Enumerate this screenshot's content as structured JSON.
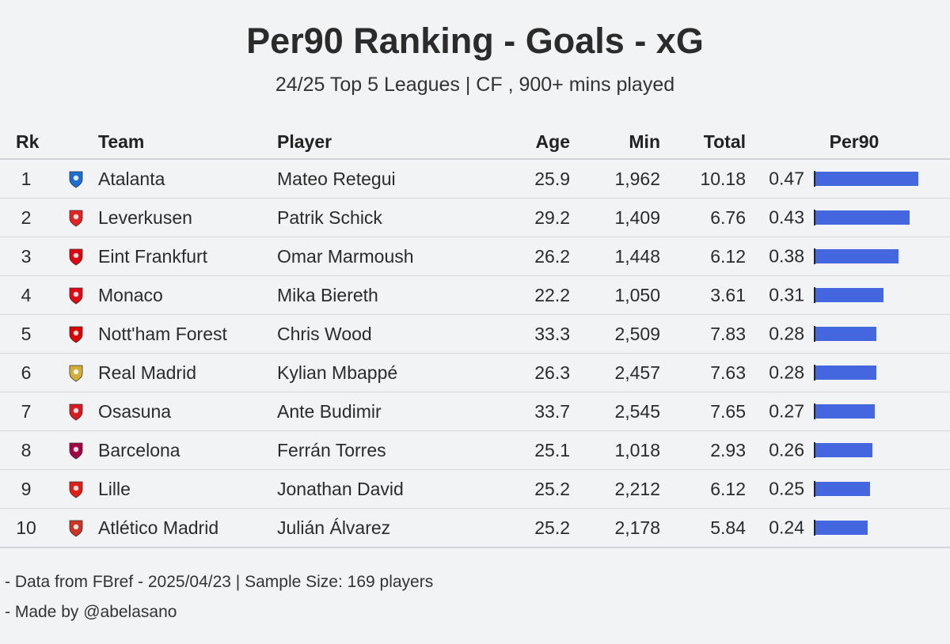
{
  "title": "Per90 Ranking - Goals - xG",
  "subtitle": "24/25 Top 5 Leagues | CF , 900+ mins played",
  "columns": {
    "rk": "Rk",
    "team": "Team",
    "player": "Player",
    "age": "Age",
    "min": "Min",
    "total": "Total",
    "per90": "Per90"
  },
  "rows": [
    {
      "rk": "1",
      "team": "Atalanta",
      "player": "Mateo Retegui",
      "age": "25.9",
      "min": "1,962",
      "total": "10.18",
      "per90": "0.47",
      "crest": "atalanta-crest",
      "color": "#1c6fd1"
    },
    {
      "rk": "2",
      "team": "Leverkusen",
      "player": "Patrik Schick",
      "age": "29.2",
      "min": "1,409",
      "total": "6.76",
      "per90": "0.43",
      "crest": "leverkusen-crest",
      "color": "#e32221"
    },
    {
      "rk": "3",
      "team": "Eint Frankfurt",
      "player": "Omar Marmoush",
      "age": "26.2",
      "min": "1,448",
      "total": "6.12",
      "per90": "0.38",
      "crest": "frankfurt-crest",
      "color": "#e1000f"
    },
    {
      "rk": "4",
      "team": "Monaco",
      "player": "Mika Biereth",
      "age": "22.2",
      "min": "1,050",
      "total": "3.61",
      "per90": "0.31",
      "crest": "monaco-crest",
      "color": "#e30613"
    },
    {
      "rk": "5",
      "team": "Nott'ham Forest",
      "player": "Chris Wood",
      "age": "33.3",
      "min": "2,509",
      "total": "7.83",
      "per90": "0.28",
      "crest": "forest-crest",
      "color": "#dd0000"
    },
    {
      "rk": "6",
      "team": "Real Madrid",
      "player": "Kylian Mbappé",
      "age": "26.3",
      "min": "2,457",
      "total": "7.63",
      "per90": "0.28",
      "crest": "real-madrid-crest",
      "color": "#d4af37"
    },
    {
      "rk": "7",
      "team": "Osasuna",
      "player": "Ante Budimir",
      "age": "33.7",
      "min": "2,545",
      "total": "7.65",
      "per90": "0.27",
      "crest": "osasuna-crest",
      "color": "#d91a21"
    },
    {
      "rk": "8",
      "team": "Barcelona",
      "player": "Ferrán Torres",
      "age": "25.1",
      "min": "1,018",
      "total": "2.93",
      "per90": "0.26",
      "crest": "barcelona-crest",
      "color": "#a50044"
    },
    {
      "rk": "9",
      "team": "Lille",
      "player": "Jonathan David",
      "age": "25.2",
      "min": "2,212",
      "total": "6.12",
      "per90": "0.25",
      "crest": "lille-crest",
      "color": "#e01e13"
    },
    {
      "rk": "10",
      "team": "Atlético Madrid",
      "player": "Julián Álvarez",
      "age": "25.2",
      "min": "2,178",
      "total": "5.84",
      "per90": "0.24",
      "crest": "atletico-crest",
      "color": "#cb3524"
    }
  ],
  "footer": {
    "line1": "- Data from FBref - 2025/04/23 | Sample Size: 169 players",
    "line2": "- Made by @abelasano"
  },
  "bar_color": "#4467e0",
  "chart_data": {
    "type": "bar",
    "title": "Per90 Ranking - Goals - xG",
    "subtitle": "24/25 Top 5 Leagues | CF , 900+ mins played",
    "categories": [
      "Mateo Retegui",
      "Patrik Schick",
      "Omar Marmoush",
      "Mika Biereth",
      "Chris Wood",
      "Kylian Mbappé",
      "Ante Budimir",
      "Ferrán Torres",
      "Jonathan David",
      "Julián Álvarez"
    ],
    "series": [
      {
        "name": "Per90",
        "values": [
          0.47,
          0.43,
          0.38,
          0.31,
          0.28,
          0.28,
          0.27,
          0.26,
          0.25,
          0.24
        ]
      }
    ],
    "xlim": [
      0,
      0.47
    ],
    "orientation": "horizontal",
    "grid": false
  }
}
